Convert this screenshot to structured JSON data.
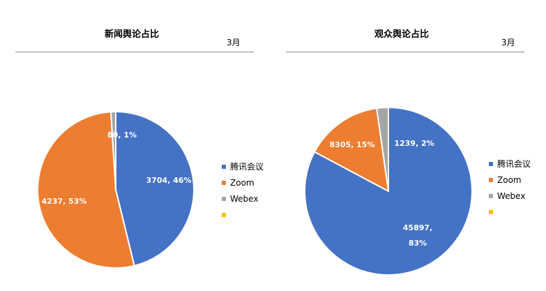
{
  "chart_data": [
    {
      "type": "pie",
      "title": "新闻舆论占比",
      "subtitle": "3月",
      "categories": [
        "腾讯会议",
        "Zoom",
        "Webex",
        ""
      ],
      "values": [
        3704,
        4237,
        80,
        0
      ],
      "percent_labels": [
        "46%",
        "53%",
        "1%",
        ""
      ],
      "data_labels": [
        "3704, 46%",
        "4237, 53%",
        "80, 1%",
        ""
      ],
      "colors": [
        "#4472C4",
        "#ED7D31",
        "#A5A5A5",
        "#FFC000"
      ],
      "legend_position": "right"
    },
    {
      "type": "pie",
      "title": "观众舆论占比",
      "subtitle": "3月",
      "categories": [
        "腾讯会议",
        "Zoom",
        "Webex",
        ""
      ],
      "values": [
        45897,
        8305,
        1239,
        0
      ],
      "percent_labels": [
        "83%",
        "15%",
        "2%",
        ""
      ],
      "data_labels": [
        "45897, 83%",
        "8305, 15%",
        "1239, 2%",
        ""
      ],
      "colors": [
        "#4472C4",
        "#ED7D31",
        "#A5A5A5",
        "#FFC000"
      ],
      "legend_position": "right"
    }
  ]
}
